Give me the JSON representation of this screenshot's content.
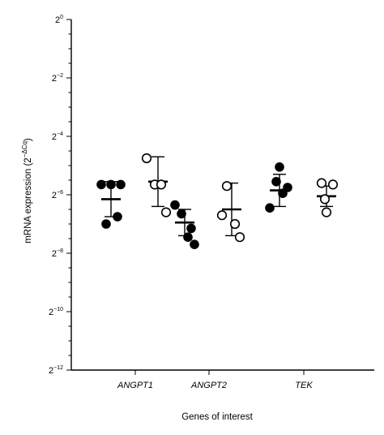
{
  "chart_data": {
    "type": "scatter",
    "title": "",
    "xlabel": "Genes of interest",
    "ylabel": "mRNA expression (2",
    "ylabel_exponent": "−ΔCq",
    "ylabel_close": ")",
    "y_scale": "log2",
    "ylim_exponent": [
      -12,
      0
    ],
    "yticks": [
      {
        "base": "2",
        "exp": "0",
        "value": 0
      },
      {
        "base": "2",
        "exp": "−2",
        "value": -2
      },
      {
        "base": "2",
        "exp": "−4",
        "value": -4
      },
      {
        "base": "2",
        "exp": "−6",
        "value": -6
      },
      {
        "base": "2",
        "exp": "−8",
        "value": -8
      },
      {
        "base": "2",
        "exp": "−10",
        "value": -10
      },
      {
        "base": "2",
        "exp": "−12",
        "value": -12
      }
    ],
    "categories": [
      "ANGPT1",
      "ANGPT2",
      "TEK"
    ],
    "series": [
      {
        "marker": "filled",
        "points": [
          [
            -5.65,
            -5.65,
            -5.65,
            -7.0,
            -6.75
          ],
          [
            -6.35,
            -6.65,
            -7.15,
            -7.45,
            -7.7
          ],
          [
            -5.05,
            -5.55,
            -5.75,
            -5.95,
            -6.45
          ]
        ],
        "means": [
          -6.15,
          -6.95,
          -5.85
        ],
        "sd": [
          0.6,
          0.45,
          0.55
        ]
      },
      {
        "marker": "open",
        "points": [
          [
            -4.75,
            -5.65,
            -5.65,
            -6.6
          ],
          [
            -5.7,
            -6.7,
            -7.0,
            -7.45
          ],
          [
            -5.6,
            -5.65,
            -6.15,
            -6.6
          ]
        ],
        "means": [
          -5.55,
          -6.5,
          -6.05
        ],
        "sd": [
          0.85,
          0.9,
          0.35
        ]
      }
    ]
  }
}
